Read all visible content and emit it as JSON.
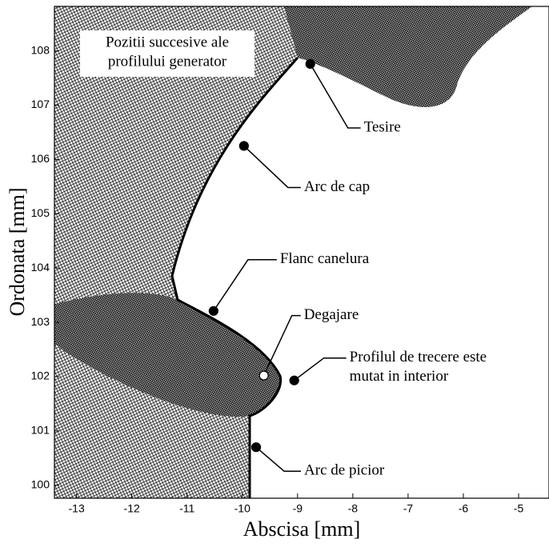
{
  "chart_data": {
    "type": "scatter",
    "xlabel": "Abscisa [mm]",
    "ylabel": "Ordonata [mm]",
    "xlim": [
      -13.4,
      -4.45
    ],
    "ylim": [
      99.76,
      108.82
    ],
    "xticks": [
      -13,
      -12,
      -11,
      -10,
      -9,
      -8,
      -7,
      -6,
      -5
    ],
    "yticks": [
      100,
      101,
      102,
      103,
      104,
      105,
      106,
      107,
      108
    ],
    "legend_box": {
      "lines": [
        "Pozitii succesive ale",
        "profilului generator"
      ]
    },
    "annotations": [
      {
        "lines": [
          "Tesire"
        ],
        "x": -8.77,
        "y": 107.76,
        "color": "#000000"
      },
      {
        "lines": [
          "Arc de cap"
        ],
        "x": -9.97,
        "y": 106.25,
        "color": "#000000"
      },
      {
        "lines": [
          "Flanc canelura"
        ],
        "x": -10.52,
        "y": 103.21,
        "color": "#000000"
      },
      {
        "lines": [
          "Degajare"
        ],
        "x": -9.61,
        "y": 102.02,
        "color": "#ffffff"
      },
      {
        "lines": [
          "Profilul de trecere este",
          "mutat in interior"
        ],
        "x": -9.06,
        "y": 101.93,
        "color": "#000000"
      },
      {
        "lines": [
          "Arc de picior"
        ],
        "x": -9.75,
        "y": 100.7,
        "color": "#000000"
      }
    ]
  }
}
